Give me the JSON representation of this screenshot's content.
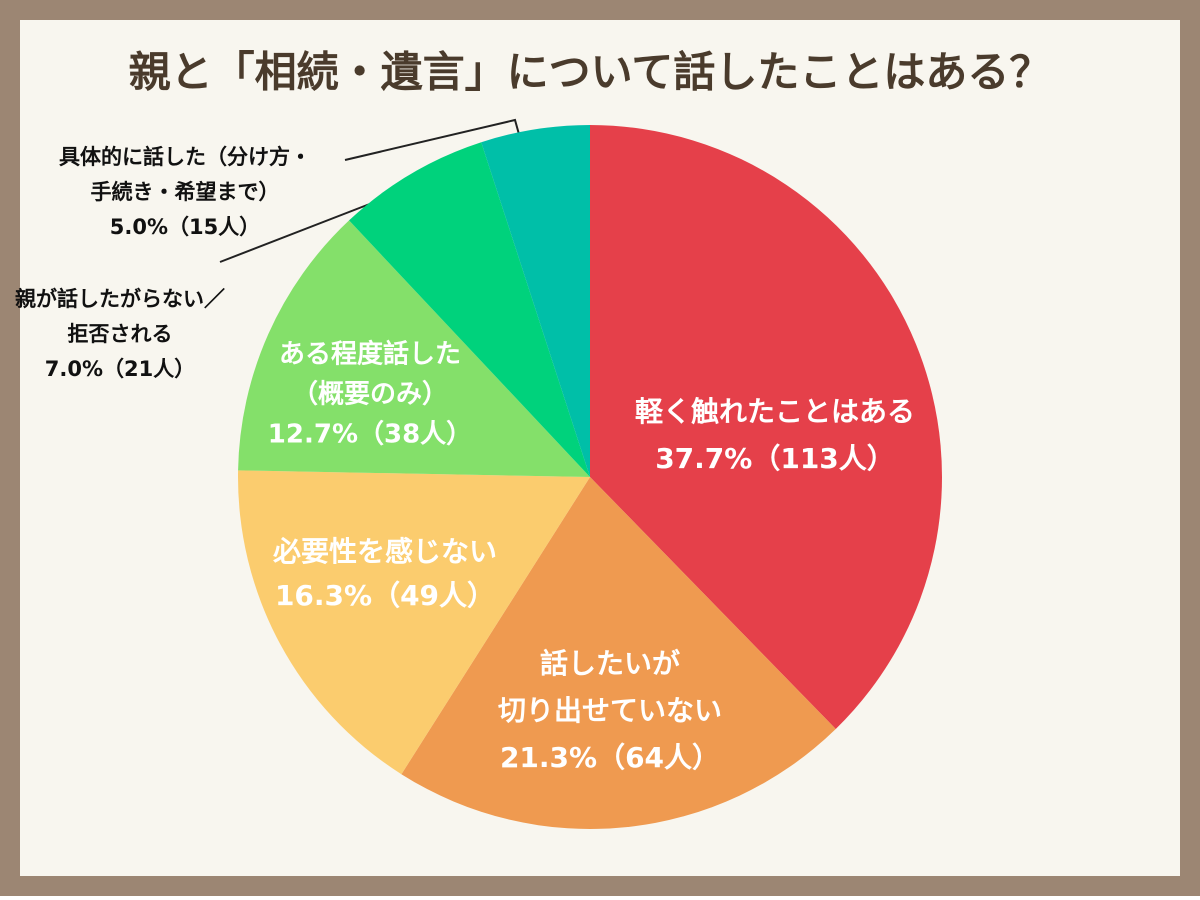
{
  "chart_data": {
    "type": "pie",
    "title": "親と「相続・遺言」について話したことはある？",
    "categories": [
      [
        "軽く触れたことはある"
      ],
      [
        "話したいが",
        "切り出せていない"
      ],
      [
        "必要性を感じない"
      ],
      [
        "ある程度話した",
        "（概要のみ）"
      ],
      [
        "親が話したがらない／",
        "拒否される"
      ],
      [
        "具体的に話した（分け方・",
        "手続き・希望まで）"
      ]
    ],
    "values": [
      37.7,
      21.3,
      16.3,
      12.7,
      7.0,
      5.0
    ],
    "value_labels": [
      "37.7%（113人）",
      "21.3%（64人）",
      "16.3%（49人）",
      "12.7%（38人）",
      "7.0%（21人）",
      "5.0%（15人）"
    ],
    "colors": [
      "#e5404a",
      "#ef9a50",
      "#fbcc6e",
      "#84e06a",
      "#00d27c",
      "#00bfa8"
    ]
  }
}
